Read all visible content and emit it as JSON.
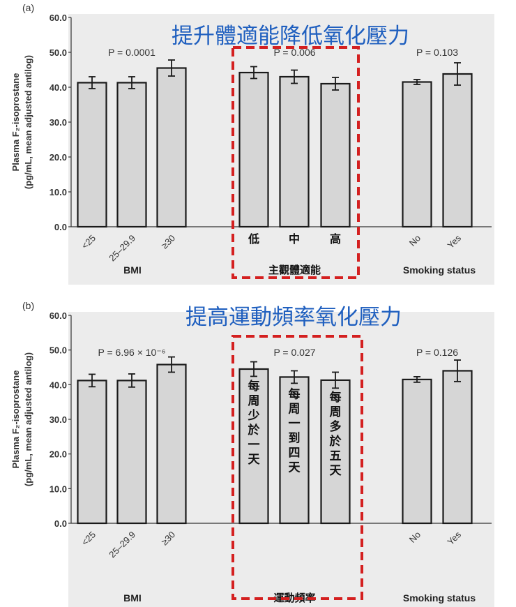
{
  "chart_data": [
    {
      "type": "bar",
      "panel_label": "(a)",
      "headline": "提升體適能降低氧化壓力",
      "ylabel_line1": "Plasma F₂-isoprostane",
      "ylabel_line2": "(pg/mL, mean adjusted antilog)",
      "ylim": [
        0,
        60
      ],
      "yticks": [
        "0.0",
        "10.0",
        "20.0",
        "30.0",
        "40.0",
        "50.0",
        "60.0"
      ],
      "highlight_group": 1,
      "groups": [
        {
          "name": "BMI",
          "p_value": "P = 0.0001",
          "categories": [
            "<25",
            "25–29.9",
            "≥30"
          ],
          "values": [
            41.3,
            41.3,
            45.5
          ],
          "errors": [
            1.7,
            1.7,
            2.3
          ]
        },
        {
          "name": "主觀體適能",
          "p_value": "P = 0.006",
          "categories": [
            "低",
            "中",
            "高"
          ],
          "values": [
            44.2,
            43.0,
            41.0
          ],
          "errors": [
            1.7,
            1.9,
            1.8
          ]
        },
        {
          "name": "Smoking status",
          "p_value": "P = 0.103",
          "categories": [
            "No",
            "Yes"
          ],
          "values": [
            41.5,
            43.8
          ],
          "errors": [
            0.7,
            3.2
          ]
        }
      ]
    },
    {
      "type": "bar",
      "panel_label": "(b)",
      "headline": "提高運動頻率氧化壓力",
      "ylabel_line1": "Plasma F₂-isoprostane",
      "ylabel_line2": "(pg/mL, mean adjusted antilog)",
      "ylim": [
        0,
        60
      ],
      "yticks": [
        "0.0",
        "10.0",
        "20.0",
        "30.0",
        "40.0",
        "50.0",
        "60.0"
      ],
      "highlight_group": 1,
      "groups": [
        {
          "name": "BMI",
          "p_value": "P = 6.96 × 10⁻⁶",
          "categories": [
            "<25",
            "25–29.9",
            "≥30"
          ],
          "values": [
            41.2,
            41.2,
            45.8
          ],
          "errors": [
            1.8,
            1.9,
            2.2
          ]
        },
        {
          "name": "運動頻率",
          "p_value": "P = 0.027",
          "categories": [
            "每周少於一天",
            "每周一到四天",
            "每周多於五天"
          ],
          "values": [
            44.5,
            42.2,
            41.3
          ],
          "errors": [
            2.1,
            1.8,
            2.3
          ]
        },
        {
          "name": "Smoking status",
          "p_value": "P = 0.126",
          "categories": [
            "No",
            "Yes"
          ],
          "values": [
            41.5,
            44.0
          ],
          "errors": [
            0.8,
            3.1
          ]
        }
      ]
    }
  ]
}
